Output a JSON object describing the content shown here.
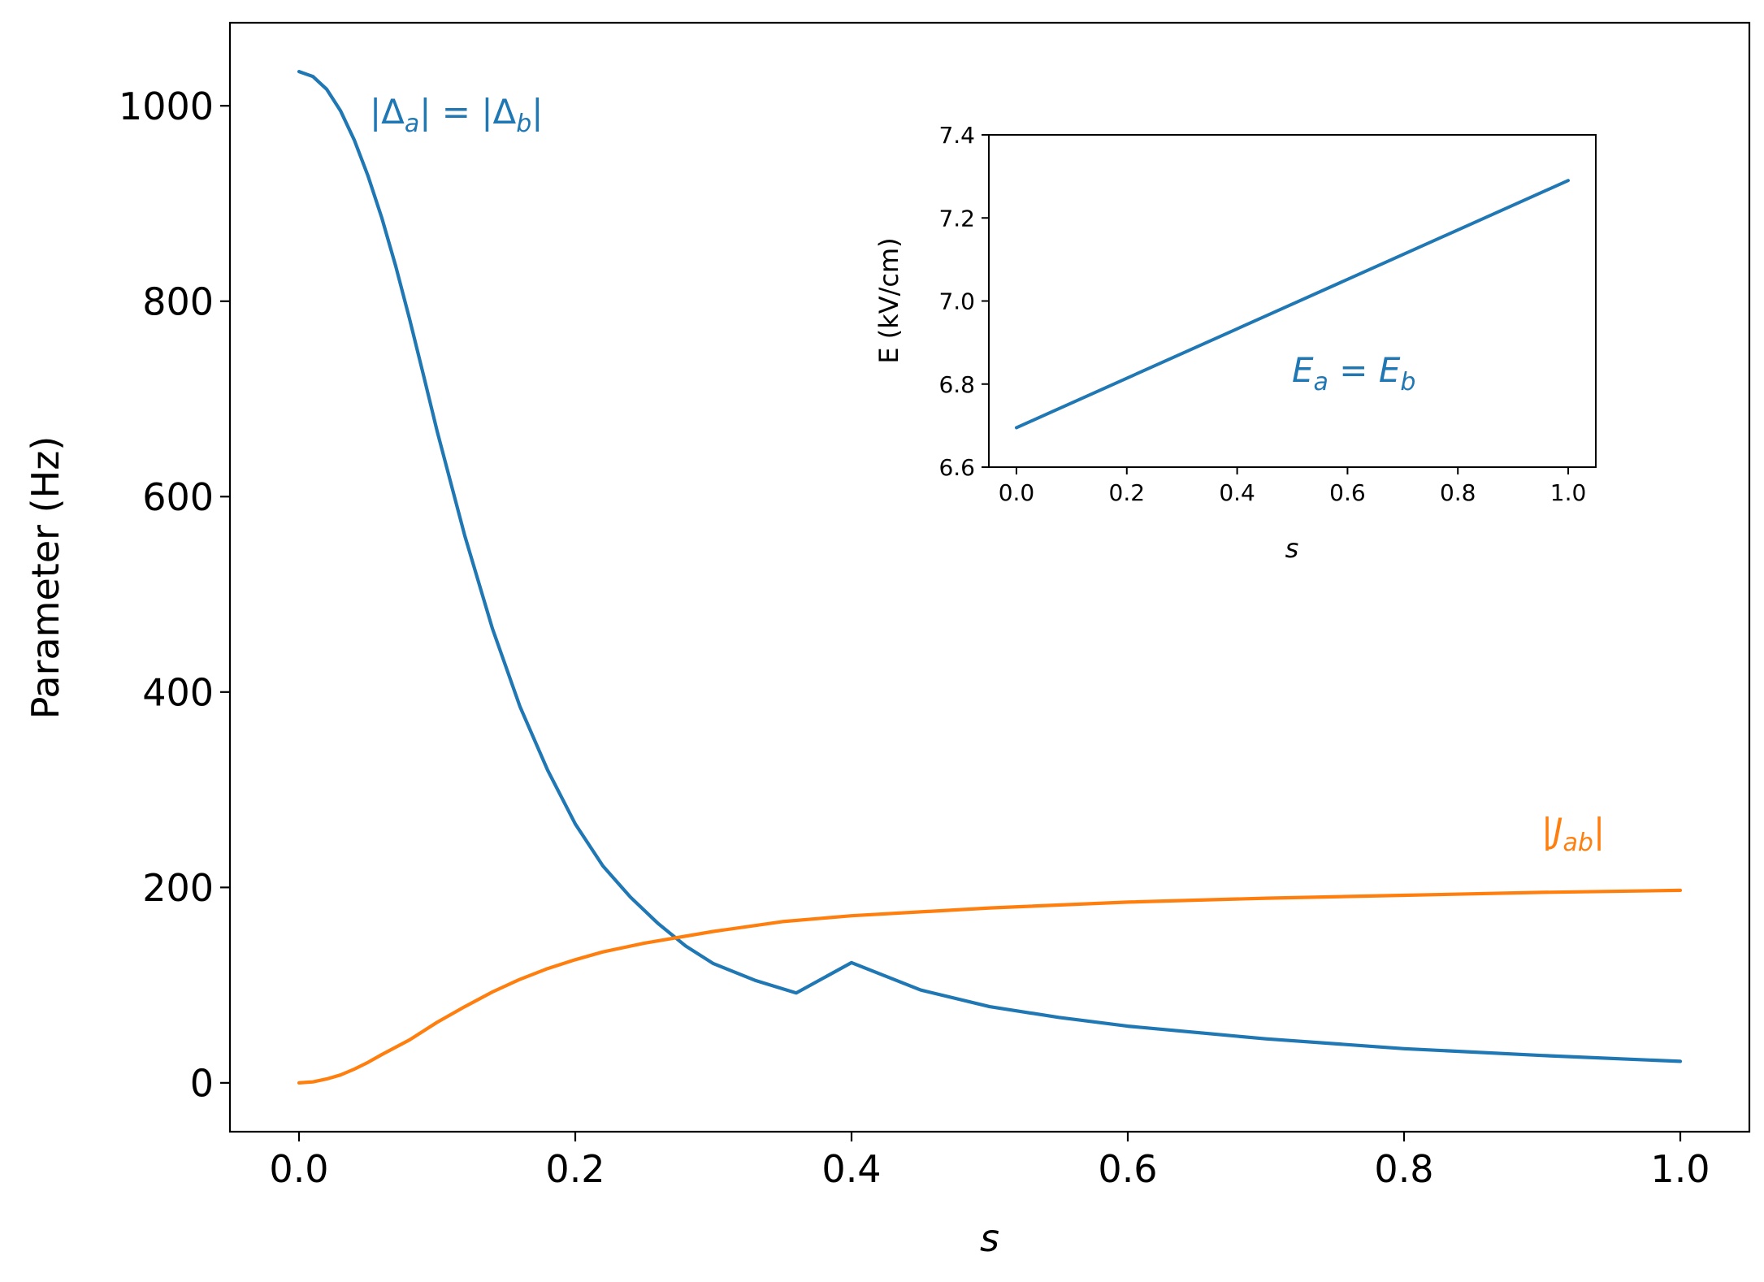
{
  "colors": {
    "series1": "#1f77b4",
    "series2": "#ff7f0e",
    "axis": "#000000",
    "background": "#ffffff"
  },
  "chart_data": [
    {
      "type": "line",
      "xlabel": "s",
      "ylabel": "Parameter (Hz)",
      "xlim": [
        -0.05,
        1.05
      ],
      "ylim": [
        -50,
        1085
      ],
      "xticks": [
        0.0,
        0.2,
        0.4,
        0.6,
        0.8,
        1.0
      ],
      "xtick_labels": [
        "0.0",
        "0.2",
        "0.4",
        "0.6",
        "0.8",
        "1.0"
      ],
      "yticks": [
        0,
        200,
        400,
        600,
        800,
        1000
      ],
      "ytick_labels": [
        "0",
        "200",
        "400",
        "600",
        "800",
        "1000"
      ],
      "grid": false,
      "annotations": [
        {
          "text": "|Δa| = |Δb|",
          "series": "blue"
        },
        {
          "text": "|Jab|",
          "series": "orange"
        }
      ],
      "series": [
        {
          "color": "#1f77b4",
          "x": [
            0.0,
            0.01,
            0.02,
            0.03,
            0.04,
            0.05,
            0.06,
            0.07,
            0.08,
            0.09,
            0.1,
            0.12,
            0.14,
            0.16,
            0.18,
            0.2,
            0.22,
            0.24,
            0.26,
            0.28,
            0.3,
            0.33,
            0.36,
            0.4,
            0.45,
            0.5,
            0.55,
            0.6,
            0.7,
            0.8,
            0.9,
            1.0
          ],
          "y": [
            1035,
            1030,
            1017,
            995,
            965,
            928,
            885,
            836,
            782,
            725,
            667,
            560,
            465,
            385,
            320,
            265,
            222,
            190,
            163,
            140,
            122,
            105,
            92,
            123,
            95,
            78,
            67,
            58,
            45,
            35,
            28,
            22
          ]
        },
        {
          "color": "#ff7f0e",
          "x": [
            0.0,
            0.01,
            0.02,
            0.03,
            0.04,
            0.05,
            0.06,
            0.08,
            0.1,
            0.12,
            0.14,
            0.16,
            0.18,
            0.2,
            0.22,
            0.25,
            0.3,
            0.35,
            0.4,
            0.5,
            0.6,
            0.7,
            0.8,
            0.9,
            1.0
          ],
          "y": [
            0,
            1,
            4,
            8,
            14,
            21,
            29,
            44,
            62,
            78,
            93,
            106,
            117,
            126,
            134,
            143,
            155,
            165,
            171,
            179,
            185,
            189,
            192,
            195,
            197
          ]
        }
      ]
    },
    {
      "type": "line",
      "xlabel": "s",
      "ylabel": "E (kV/cm)",
      "xlim": [
        -0.05,
        1.05
      ],
      "ylim": [
        6.6,
        7.4
      ],
      "xticks": [
        0.0,
        0.2,
        0.4,
        0.6,
        0.8,
        1.0
      ],
      "xtick_labels": [
        "0.0",
        "0.2",
        "0.4",
        "0.6",
        "0.8",
        "1.0"
      ],
      "yticks": [
        6.6,
        6.8,
        7.0,
        7.2,
        7.4
      ],
      "ytick_labels": [
        "6.6",
        "6.8",
        "7.0",
        "7.2",
        "7.4"
      ],
      "grid": false,
      "annotations": [
        {
          "text": "Ea = Eb"
        }
      ],
      "series": [
        {
          "color": "#1f77b4",
          "x": [
            0.0,
            1.0
          ],
          "y": [
            6.695,
            7.29
          ]
        }
      ]
    }
  ]
}
